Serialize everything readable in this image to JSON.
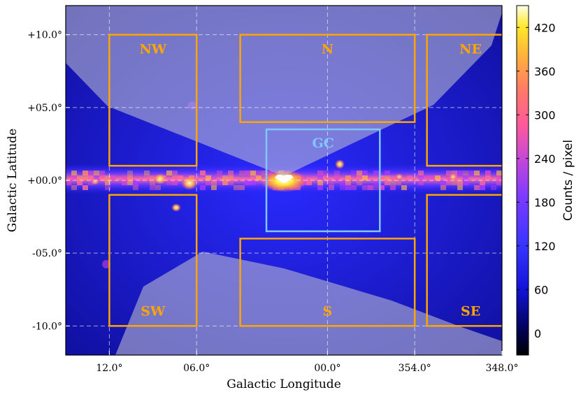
{
  "chart_data": {
    "type": "heatmap",
    "title": "",
    "xlabel": "Galactic Longitude",
    "ylabel": "Galactic Latitude",
    "xlim": [
      15.0,
      -10.0
    ],
    "ylim": [
      -12.0,
      12.0
    ],
    "x_ticks": [
      {
        "value": 12.5,
        "label": "12.0°"
      },
      {
        "value": 7.5,
        "label": "06.0°"
      },
      {
        "value": 0.0,
        "label": "00.0°"
      },
      {
        "value": -5.0,
        "label": "354.0°"
      },
      {
        "value": -10.0,
        "label": "348.0°"
      }
    ],
    "y_ticks": [
      {
        "value": 10,
        "label": "+10.0°"
      },
      {
        "value": 5,
        "label": "+05.0°"
      },
      {
        "value": 0,
        "label": "+00.0°"
      },
      {
        "value": -5,
        "label": "-05.0°"
      },
      {
        "value": -10,
        "label": "-10.0°"
      }
    ],
    "grid": true,
    "colorbar": {
      "label": "Counts / pixel",
      "range": [
        -30,
        450
      ],
      "ticks": [
        0,
        60,
        120,
        180,
        240,
        300,
        360,
        420
      ]
    },
    "regions": [
      {
        "name": "NW",
        "l_range": [
          12.5,
          7.5
        ],
        "b_range": [
          1.0,
          10.0
        ],
        "color": "#FFA500"
      },
      {
        "name": "N",
        "l_range": [
          5.0,
          -5.0
        ],
        "b_range": [
          4.0,
          10.0
        ],
        "color": "#FFA500"
      },
      {
        "name": "NE",
        "l_range": [
          -5.7,
          -10.7
        ],
        "b_range": [
          1.0,
          10.0
        ],
        "color": "#FFA500"
      },
      {
        "name": "GC",
        "l_range": [
          3.5,
          -3.0
        ],
        "b_range": [
          -3.5,
          3.5
        ],
        "color": "#7EC8FF"
      },
      {
        "name": "SW",
        "l_range": [
          12.5,
          7.5
        ],
        "b_range": [
          -10.0,
          -1.0
        ],
        "color": "#FFA500"
      },
      {
        "name": "S",
        "l_range": [
          5.0,
          -5.0
        ],
        "b_range": [
          -10.0,
          -4.0
        ],
        "color": "#FFA500"
      },
      {
        "name": "SE",
        "l_range": [
          -5.7,
          -10.7
        ],
        "b_range": [
          -10.0,
          -1.0
        ],
        "color": "#FFA500"
      }
    ]
  },
  "colors": {
    "background_map": "#1a1ae6",
    "plane": "#e85aa6",
    "mask": "#b7b7c9",
    "region_orange": "#FFA500",
    "region_gc": "#7EC8FF"
  }
}
